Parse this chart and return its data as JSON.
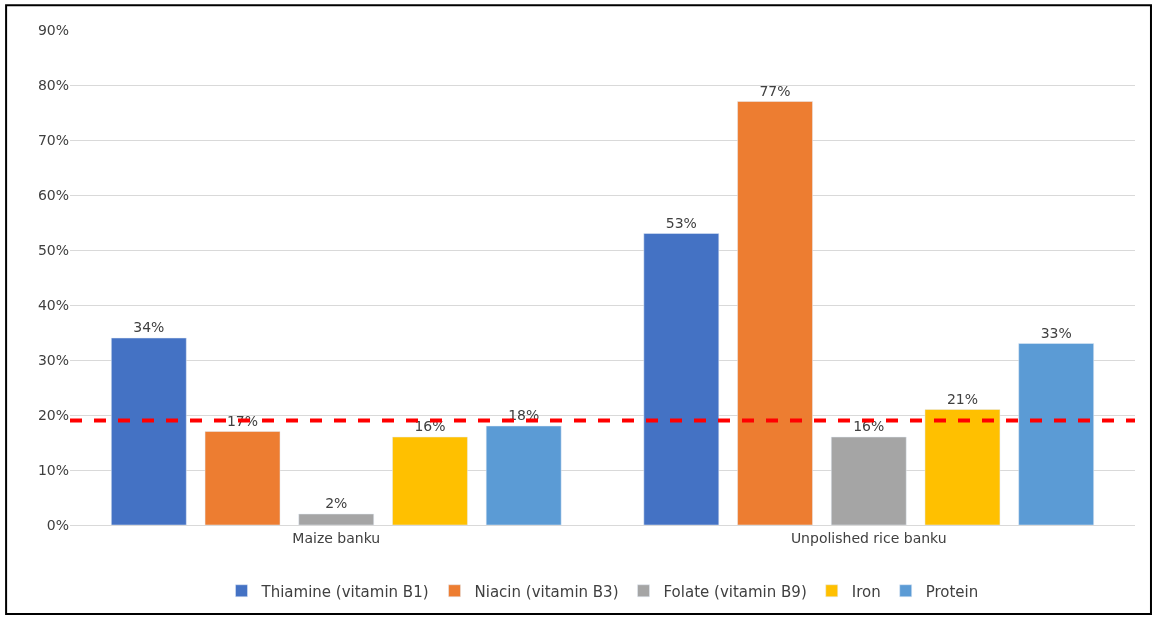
{
  "chart_data": {
    "type": "bar",
    "categories": [
      "Maize banku",
      "Unpolished rice banku"
    ],
    "series": [
      {
        "name": "Thiamine (vitamin B1)",
        "color": "#4472c4",
        "values": [
          34,
          53
        ],
        "value_labels": [
          "34%",
          "53%"
        ]
      },
      {
        "name": "Niacin (vitamin B3)",
        "color": "#ed7d31",
        "values": [
          17,
          77
        ],
        "value_labels": [
          "17%",
          "77%"
        ]
      },
      {
        "name": "Folate (vitamin B9)",
        "color": "#a5a5a5",
        "values": [
          2,
          16
        ],
        "value_labels": [
          "2%",
          "16%"
        ]
      },
      {
        "name": "Iron",
        "color": "#ffc000",
        "values": [
          16,
          21
        ],
        "value_labels": [
          "16%",
          "21%"
        ]
      },
      {
        "name": "Protein",
        "color": "#5b9bd5",
        "values": [
          18,
          33
        ],
        "value_labels": [
          "18%",
          "33%"
        ]
      }
    ],
    "ylim": [
      0,
      90
    ],
    "yticks": [
      {
        "value": 0,
        "label": "0%"
      },
      {
        "value": 10,
        "label": "10%"
      },
      {
        "value": 20,
        "label": "20%"
      },
      {
        "value": 30,
        "label": "30%"
      },
      {
        "value": 40,
        "label": "40%"
      },
      {
        "value": 50,
        "label": "50%"
      },
      {
        "value": 60,
        "label": "60%"
      },
      {
        "value": 70,
        "label": "70%"
      },
      {
        "value": 80,
        "label": "80%"
      },
      {
        "value": 90,
        "label": "90%"
      }
    ],
    "ref_lines": [
      {
        "axis": "y",
        "value": 19,
        "color": "#ff0000",
        "line_style": "dashed"
      }
    ],
    "grid": "y",
    "legend": "bottom"
  }
}
